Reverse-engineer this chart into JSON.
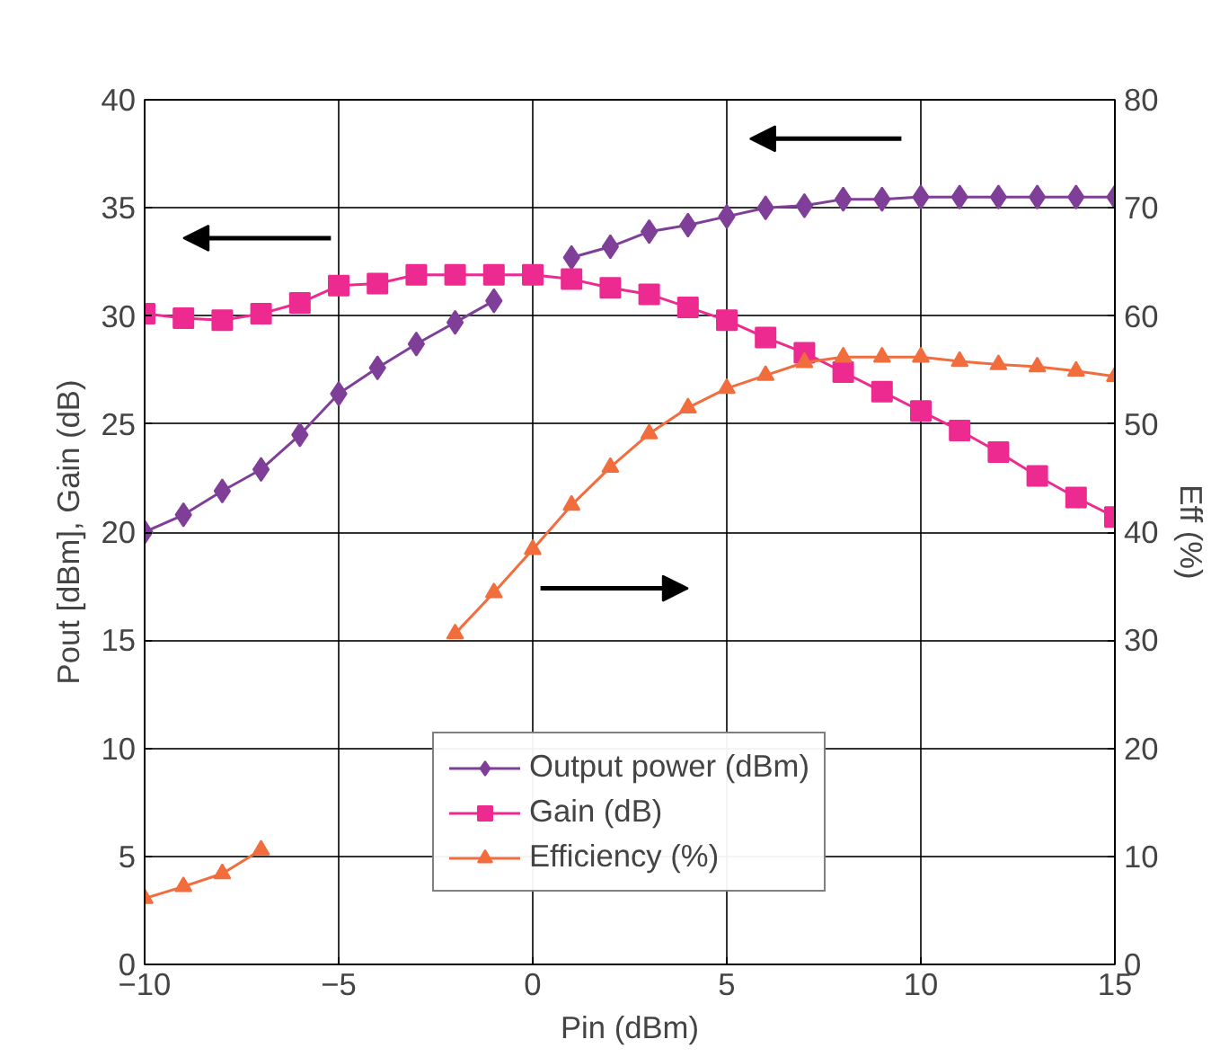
{
  "chart_data": {
    "type": "line",
    "xlabel": "Pin (dBm)",
    "ylabel": "Pout [dBm], Gain (dB)",
    "y2label": "Eff (%)",
    "x": [
      -10,
      -9,
      -8,
      -7,
      -6,
      -5,
      -4,
      -3,
      -2,
      -1,
      0,
      1,
      2,
      3,
      4,
      5,
      6,
      7,
      8,
      9,
      10,
      11,
      12,
      13,
      14,
      15
    ],
    "xlim": [
      -10,
      15
    ],
    "xticks": [
      -10,
      -5,
      0,
      5,
      10,
      15
    ],
    "ylim": [
      0,
      40
    ],
    "yticks": [
      0,
      5,
      10,
      15,
      20,
      25,
      30,
      35,
      40
    ],
    "y2lim": [
      0,
      80
    ],
    "y2ticks": [
      0,
      10,
      20,
      30,
      40,
      50,
      60,
      70,
      80
    ],
    "grid": true,
    "legend": "bottom",
    "line_style": "solid",
    "series": [
      {
        "name": "Output power (dBm)",
        "color": "#7f3f98",
        "marker": "diamond",
        "values": [
          20.0,
          20.8,
          21.9,
          22.9,
          24.5,
          26.4,
          27.6,
          28.7,
          29.7,
          30.7,
          null,
          32.7,
          33.2,
          33.9,
          34.2,
          34.6,
          35.0,
          35.1,
          35.4,
          35.4,
          35.5,
          35.5,
          35.5,
          35.5,
          35.5,
          35.5
        ]
      },
      {
        "name": "Gain (dB)",
        "color": "#ec2a8f",
        "marker": "square",
        "values": [
          30.1,
          29.9,
          29.8,
          30.1,
          30.6,
          31.4,
          31.5,
          31.9,
          31.9,
          31.9,
          31.9,
          31.7,
          31.3,
          31.0,
          30.4,
          29.8,
          29.0,
          28.3,
          27.4,
          26.5,
          25.6,
          24.7,
          23.7,
          22.6,
          21.6,
          20.7
        ]
      },
      {
        "name": "Efficiency (%)",
        "color": "#f26d3d",
        "marker": "triangle",
        "axis": "y2",
        "values": [
          6.1,
          7.2,
          8.4,
          10.6,
          null,
          null,
          null,
          null,
          30.6,
          34.4,
          38.4,
          42.5,
          46.0,
          49.1,
          51.5,
          53.3,
          54.5,
          55.7,
          56.2,
          56.2,
          56.2,
          55.8,
          55.5,
          55.3,
          54.9,
          54.4
        ]
      }
    ]
  }
}
